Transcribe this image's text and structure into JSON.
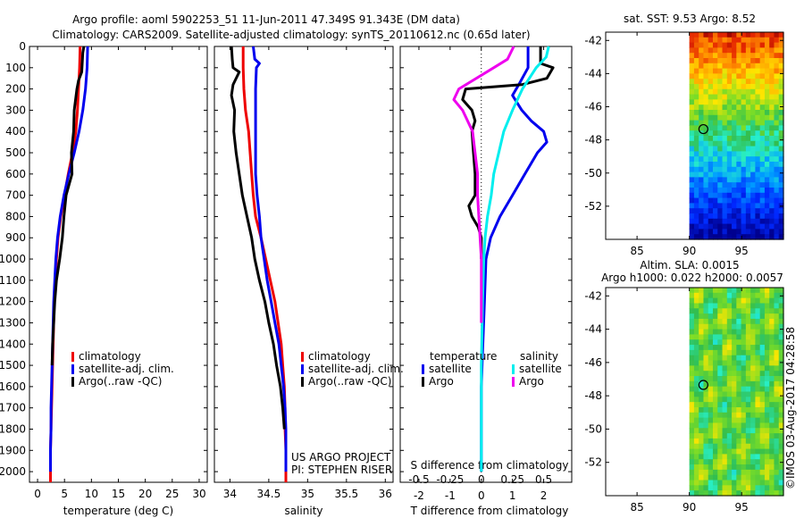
{
  "header": {
    "title_line1": "Argo profile: aoml 5902253_51 11-Jun-2011 47.349S 91.343E (DM data)",
    "title_line2": "Climatology: CARS2009. Satellite-adjusted climatology: synTS_20110612.nc (0.65d later)"
  },
  "colors": {
    "climatology": "#ee0000",
    "satellite": "#0000ee",
    "argo": "#000000",
    "s_satellite": "#00eeee",
    "s_argo": "#ee00ee"
  },
  "chart_data": [
    {
      "type": "line",
      "title": "",
      "xlabel": "temperature (deg C)",
      "ylabel": "",
      "xlim": [
        -1.5,
        31.5
      ],
      "ylim": [
        2050,
        0
      ],
      "xticks": [
        0,
        5,
        10,
        15,
        20,
        25,
        30
      ],
      "yticks": [
        0,
        100,
        200,
        300,
        400,
        500,
        600,
        700,
        800,
        900,
        1000,
        1100,
        1200,
        1300,
        1400,
        1500,
        1600,
        1700,
        1800,
        1900,
        2000
      ],
      "legend": [
        "climatology",
        "satellite-adj. clim.",
        "Argo(..raw -QC)"
      ],
      "series": [
        {
          "name": "climatology",
          "color": "#ee0000",
          "x": [
            7.9,
            7.8,
            7.6,
            7.4,
            7.1,
            6.5,
            5.7,
            5.0,
            4.3,
            3.8,
            3.5,
            3.3,
            3.1,
            3.0,
            2.9,
            2.8,
            2.7,
            2.6,
            2.5,
            2.4,
            2.4
          ],
          "y": [
            0,
            100,
            200,
            300,
            400,
            500,
            600,
            700,
            800,
            900,
            1000,
            1100,
            1200,
            1300,
            1400,
            1500,
            1600,
            1700,
            1800,
            1900,
            2050
          ]
        },
        {
          "name": "satellite-adj. clim.",
          "color": "#0000ee",
          "x": [
            9.3,
            9.2,
            8.9,
            8.4,
            7.7,
            6.8,
            5.8,
            4.9,
            4.2,
            3.7,
            3.4,
            3.2,
            3.0,
            2.9,
            2.8,
            2.7,
            2.6,
            2.5,
            2.5,
            2.4,
            2.4
          ],
          "y": [
            0,
            100,
            200,
            300,
            400,
            500,
            600,
            700,
            800,
            900,
            1000,
            1100,
            1200,
            1300,
            1400,
            1500,
            1600,
            1700,
            1800,
            1900,
            2000
          ]
        },
        {
          "name": "Argo(..raw -QC)",
          "color": "#000000",
          "x": [
            8.6,
            8.4,
            8.2,
            7.6,
            7.3,
            6.8,
            6.7,
            6.3,
            6.4,
            5.3,
            4.9,
            4.6,
            4.1,
            3.5,
            3.2,
            3.0,
            2.8,
            2.7
          ],
          "y": [
            0,
            30,
            120,
            160,
            200,
            300,
            400,
            500,
            600,
            700,
            800,
            900,
            1000,
            1100,
            1200,
            1300,
            1400,
            1500
          ]
        }
      ]
    },
    {
      "type": "line",
      "title": "",
      "xlabel": "salinity",
      "ylabel": "",
      "xlim": [
        33.8,
        36.1
      ],
      "ylim": [
        2050,
        0
      ],
      "xticks": [
        34,
        34.5,
        35,
        35.5,
        36
      ],
      "xticklabels": [
        "34",
        "34.5",
        "35",
        "35.5",
        "36"
      ],
      "legend": [
        "climatology",
        "satellite-adj. clim.",
        "Argo(..raw -QC)"
      ],
      "series": [
        {
          "name": "climatology",
          "color": "#ee0000",
          "x": [
            34.17,
            34.17,
            34.18,
            34.2,
            34.24,
            34.26,
            34.28,
            34.3,
            34.33,
            34.4,
            34.46,
            34.52,
            34.58,
            34.62,
            34.66,
            34.68,
            34.7,
            34.71,
            34.71,
            34.72,
            34.72
          ],
          "y": [
            0,
            100,
            200,
            300,
            400,
            500,
            600,
            700,
            800,
            900,
            1000,
            1100,
            1200,
            1300,
            1400,
            1500,
            1600,
            1700,
            1800,
            1900,
            2050
          ]
        },
        {
          "name": "satellite-adj. clim.",
          "color": "#0000ee",
          "x": [
            34.3,
            34.32,
            34.38,
            34.34,
            34.33,
            34.33,
            34.33,
            34.33,
            34.33,
            34.35,
            34.38,
            34.4,
            34.44,
            34.48,
            34.53,
            34.58,
            34.63,
            34.66,
            34.69,
            34.71,
            34.72,
            34.72
          ],
          "y": [
            0,
            60,
            80,
            100,
            200,
            300,
            400,
            500,
            600,
            700,
            800,
            900,
            1000,
            1100,
            1200,
            1300,
            1400,
            1500,
            1600,
            1700,
            1800,
            2000
          ]
        },
        {
          "name": "Argo(..raw -QC)",
          "color": "#000000",
          "x": [
            34.02,
            34.03,
            34.04,
            34.12,
            34.04,
            34.02,
            34.06,
            34.05,
            34.08,
            34.12,
            34.16,
            34.22,
            34.28,
            34.32,
            34.38,
            34.45,
            34.5,
            34.56,
            34.6,
            34.65,
            34.68,
            34.7
          ],
          "y": [
            0,
            60,
            100,
            120,
            180,
            230,
            300,
            400,
            500,
            600,
            700,
            800,
            900,
            1000,
            1100,
            1200,
            1300,
            1400,
            1500,
            1600,
            1700,
            1800
          ]
        }
      ]
    },
    {
      "type": "line",
      "title": "",
      "xlabel": "T difference from climatology",
      "xlabel2": "S difference from climatology",
      "xlim": [
        -2.6,
        2.9
      ],
      "ylim": [
        2050,
        0
      ],
      "xticks_t": [
        -2,
        -1,
        0,
        1,
        2
      ],
      "xticks_s": [
        -0.5,
        -0.25,
        0,
        0.25,
        0.5
      ],
      "xticklabels_s": [
        "-0.5",
        "-0.25",
        "0",
        "0.25",
        "0.5"
      ],
      "legend_title_t": "temperature",
      "legend_title_s": "salinity",
      "legend": [
        "satellite",
        "Argo",
        "satellite",
        "Argo"
      ],
      "series": [
        {
          "name": "temperature satellite",
          "color": "#0000ee",
          "x": [
            1.5,
            1.5,
            1.2,
            1.0,
            1.3,
            1.6,
            2.0,
            2.1,
            1.8,
            1.4,
            1.0,
            0.6,
            0.3,
            0.15,
            0.1,
            0.05,
            0.0,
            0.0
          ],
          "y": [
            0,
            100,
            180,
            230,
            300,
            350,
            400,
            450,
            500,
            600,
            700,
            800,
            900,
            1000,
            1200,
            1400,
            1600,
            2000
          ]
        },
        {
          "name": "temperature Argo",
          "color": "#000000",
          "x": [
            1.9,
            1.9,
            2.3,
            2.1,
            1.3,
            -0.5,
            -0.6,
            -0.3,
            -0.2,
            -0.3,
            -0.25,
            -0.2,
            -0.2,
            -0.4,
            -0.3,
            -0.1,
            0.0,
            0.0
          ],
          "y": [
            0,
            80,
            100,
            150,
            180,
            200,
            250,
            300,
            350,
            400,
            500,
            600,
            700,
            750,
            800,
            850,
            900,
            1000
          ]
        },
        {
          "name": "salinity satellite",
          "color": "#00eeee",
          "x": [
            0.54,
            0.52,
            0.44,
            0.33,
            0.25,
            0.18,
            0.14,
            0.1,
            0.08,
            0.05,
            0.03,
            0.02,
            0.01,
            0.0,
            0.0
          ],
          "y": [
            0,
            50,
            100,
            200,
            300,
            400,
            500,
            600,
            700,
            800,
            900,
            1000,
            1200,
            1500,
            2000
          ]
        },
        {
          "name": "salinity Argo",
          "color": "#ee00ee",
          "x": [
            0.26,
            0.21,
            0.1,
            -0.18,
            -0.22,
            -0.15,
            -0.07,
            -0.05,
            -0.03,
            -0.03,
            -0.02,
            -0.01,
            0.0,
            0.0
          ],
          "y": [
            0,
            60,
            100,
            200,
            250,
            300,
            400,
            500,
            600,
            700,
            800,
            900,
            1000,
            1300
          ]
        }
      ]
    },
    {
      "type": "heatmap",
      "title": "sat. SST: 9.53 Argo: 8.52",
      "xlim": [
        82,
        99
      ],
      "ylim": [
        -54,
        -41.5
      ],
      "xticks": [
        85,
        90,
        95
      ],
      "yticks": [
        -42,
        -44,
        -46,
        -48,
        -50,
        -52
      ],
      "data_lon_range": [
        90,
        99
      ],
      "marker": {
        "lon": 91.343,
        "lat": -47.349
      }
    },
    {
      "type": "heatmap",
      "title": "Altim. SLA: 0.0015",
      "subtitle": "Argo h1000: 0.022 h2000: 0.0057",
      "xlim": [
        82,
        99
      ],
      "ylim": [
        -54,
        -41.5
      ],
      "xticks": [
        85,
        90,
        95
      ],
      "yticks": [
        -42,
        -44,
        -46,
        -48,
        -50,
        -52
      ],
      "data_lon_range": [
        90,
        99
      ],
      "marker": {
        "lon": 91.343,
        "lat": -47.349
      }
    }
  ],
  "credits": {
    "line1": "US ARGO PROJECT",
    "line2": "PI: STEPHEN RISER"
  },
  "footer": "©IMOS 03-Aug-2017 04:28:58"
}
